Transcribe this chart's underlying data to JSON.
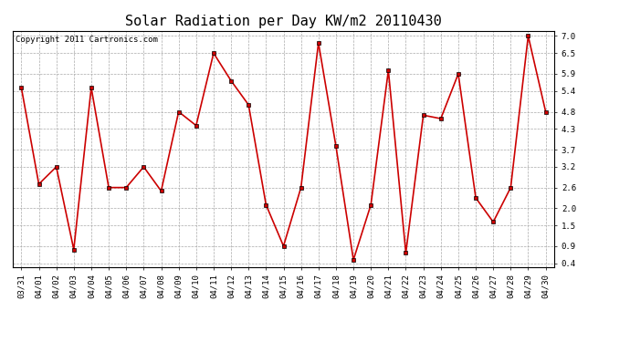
{
  "title": "Solar Radiation per Day KW/m2 20110430",
  "copyright": "Copyright 2011 Cartronics.com",
  "dates": [
    "03/31",
    "04/01",
    "04/02",
    "04/03",
    "04/04",
    "04/05",
    "04/06",
    "04/07",
    "04/08",
    "04/09",
    "04/10",
    "04/11",
    "04/12",
    "04/13",
    "04/14",
    "04/15",
    "04/16",
    "04/17",
    "04/18",
    "04/19",
    "04/20",
    "04/21",
    "04/22",
    "04/23",
    "04/24",
    "04/25",
    "04/26",
    "04/27",
    "04/28",
    "04/29",
    "04/30"
  ],
  "values": [
    5.5,
    2.7,
    3.2,
    0.8,
    5.5,
    2.6,
    2.6,
    3.2,
    2.5,
    4.8,
    4.4,
    6.5,
    5.7,
    5.0,
    2.1,
    0.9,
    2.6,
    6.8,
    3.8,
    0.5,
    2.1,
    6.0,
    0.7,
    4.7,
    4.6,
    5.9,
    2.3,
    1.6,
    2.6,
    7.0,
    4.8
  ],
  "line_color": "#cc0000",
  "marker_color": "#000000",
  "bg_color": "#ffffff",
  "plot_bg_color": "#ffffff",
  "grid_color": "#aaaaaa",
  "yticks": [
    0.4,
    0.9,
    1.5,
    2.0,
    2.6,
    3.2,
    3.7,
    4.3,
    4.8,
    5.4,
    5.9,
    6.5,
    7.0
  ],
  "ylim": [
    0.3,
    7.15
  ],
  "title_fontsize": 11,
  "copyright_fontsize": 6.5,
  "tick_fontsize": 6.5
}
